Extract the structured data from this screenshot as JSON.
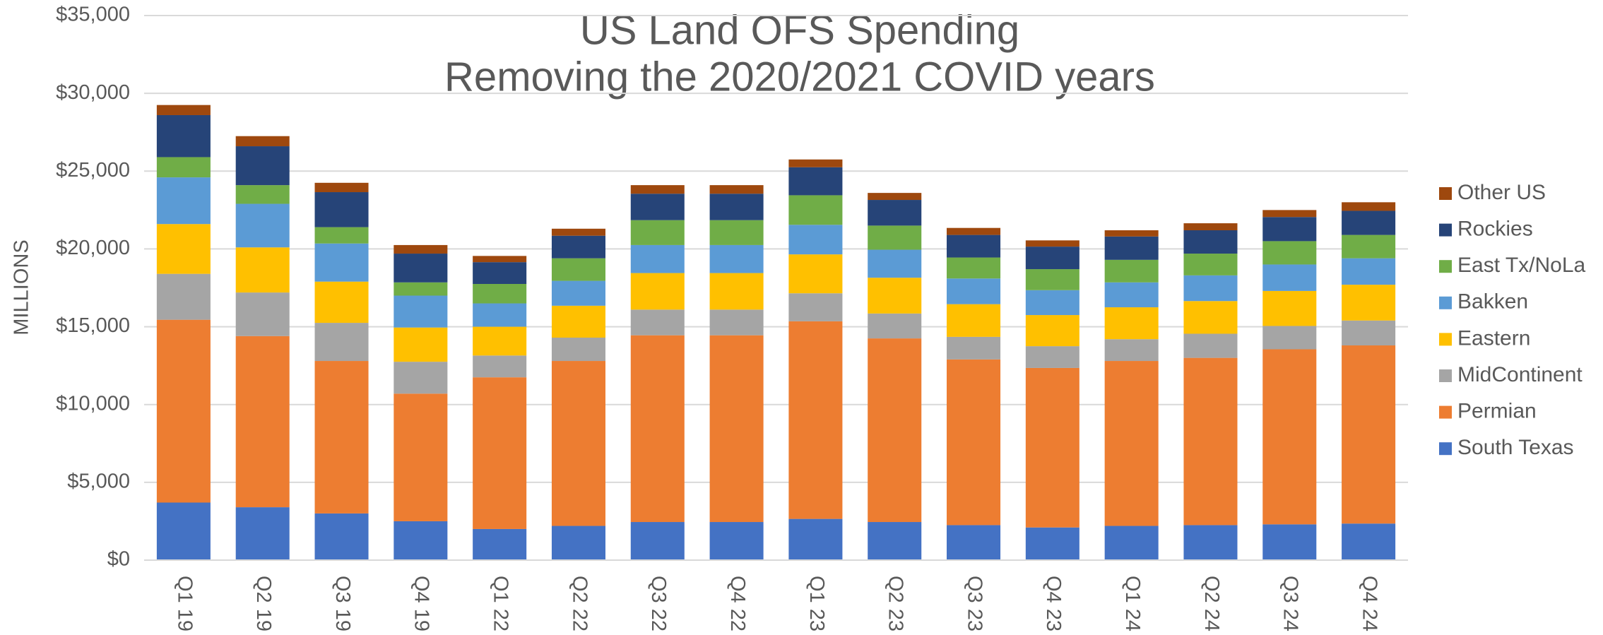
{
  "chart_data": {
    "type": "stacked-bar",
    "title": [
      "US Land OFS Spending",
      "Removing the 2020/2021 COVID years"
    ],
    "y_label": "MILLIONS",
    "categories": [
      "Q1 19",
      "Q2 19",
      "Q3 19",
      "Q4 19",
      "Q1 22",
      "Q2 22",
      "Q3 22",
      "Q4 22",
      "Q1 23",
      "Q2 23",
      "Q3 23",
      "Q4 23",
      "Q1 24",
      "Q2 24",
      "Q3 24",
      "Q4 24"
    ],
    "series": [
      {
        "name": "South Texas",
        "color": "#4472c4",
        "values": [
          3700,
          3400,
          3000,
          2500,
          2000,
          2200,
          2450,
          2450,
          2650,
          2450,
          2250,
          2100,
          2200,
          2250,
          2300,
          2350
        ]
      },
      {
        "name": "Permian",
        "color": "#ed7d31",
        "values": [
          11750,
          11000,
          9800,
          8200,
          9750,
          10600,
          12000,
          12000,
          12700,
          11800,
          10650,
          10250,
          10600,
          10750,
          11250,
          11450
        ]
      },
      {
        "name": "MidContinent",
        "color": "#a5a5a5",
        "values": [
          2950,
          2800,
          2450,
          2050,
          1400,
          1500,
          1650,
          1650,
          1800,
          1600,
          1450,
          1400,
          1400,
          1550,
          1500,
          1600
        ]
      },
      {
        "name": "Eastern",
        "color": "#ffc000",
        "values": [
          3200,
          2900,
          2650,
          2200,
          1850,
          2050,
          2350,
          2350,
          2500,
          2300,
          2100,
          2000,
          2050,
          2100,
          2250,
          2300
        ]
      },
      {
        "name": "Bakken",
        "color": "#5b9bd5",
        "values": [
          3000,
          2800,
          2450,
          2050,
          1500,
          1600,
          1800,
          1800,
          1900,
          1800,
          1650,
          1600,
          1600,
          1650,
          1700,
          1700
        ]
      },
      {
        "name": "East Tx/NoLa",
        "color": "#70ad47",
        "values": [
          1300,
          1200,
          1050,
          850,
          1250,
          1450,
          1600,
          1600,
          1900,
          1550,
          1350,
          1350,
          1450,
          1400,
          1500,
          1500
        ]
      },
      {
        "name": "Rockies",
        "color": "#264478",
        "values": [
          2700,
          2500,
          2250,
          1850,
          1400,
          1450,
          1700,
          1700,
          1800,
          1650,
          1450,
          1450,
          1500,
          1500,
          1550,
          1550
        ]
      },
      {
        "name": "Other US",
        "color": "#9e480e",
        "values": [
          650,
          650,
          600,
          550,
          400,
          450,
          550,
          550,
          500,
          450,
          450,
          400,
          400,
          450,
          450,
          550
        ]
      }
    ],
    "ylim": [
      0,
      35000
    ],
    "yticks": [
      {
        "value": 0,
        "label": "$0"
      },
      {
        "value": 5000,
        "label": "$5,000"
      },
      {
        "value": 10000,
        "label": "$10,000"
      },
      {
        "value": 15000,
        "label": "$15,000"
      },
      {
        "value": 20000,
        "label": "$20,000"
      },
      {
        "value": 25000,
        "label": "$25,000"
      },
      {
        "value": 30000,
        "label": "$30,000"
      },
      {
        "value": 35000,
        "label": "$35,000"
      }
    ],
    "grid": true,
    "legend": "right"
  }
}
